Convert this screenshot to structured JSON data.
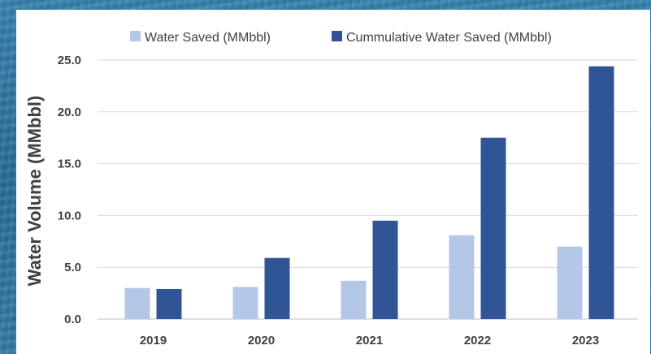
{
  "chart_data": {
    "type": "bar",
    "title": "",
    "xlabel": "",
    "ylabel": "Water Volume (MMbbl)",
    "categories": [
      "2019",
      "2020",
      "2021",
      "2022",
      "2023"
    ],
    "series": [
      {
        "name": "Water Saved (MMbbl)",
        "color": "#b4c7e7",
        "values": [
          3.0,
          3.1,
          3.7,
          8.1,
          7.0
        ]
      },
      {
        "name": "Cummulative Water Saved (MMbbl)",
        "color": "#2f5597",
        "values": [
          2.9,
          5.9,
          9.5,
          17.5,
          24.4
        ]
      }
    ],
    "ylim": [
      0,
      25
    ],
    "yticks": [
      "0.0",
      "5.0",
      "10.0",
      "15.0",
      "20.0",
      "25.0"
    ],
    "grid": "horizontal",
    "legend": "top"
  }
}
